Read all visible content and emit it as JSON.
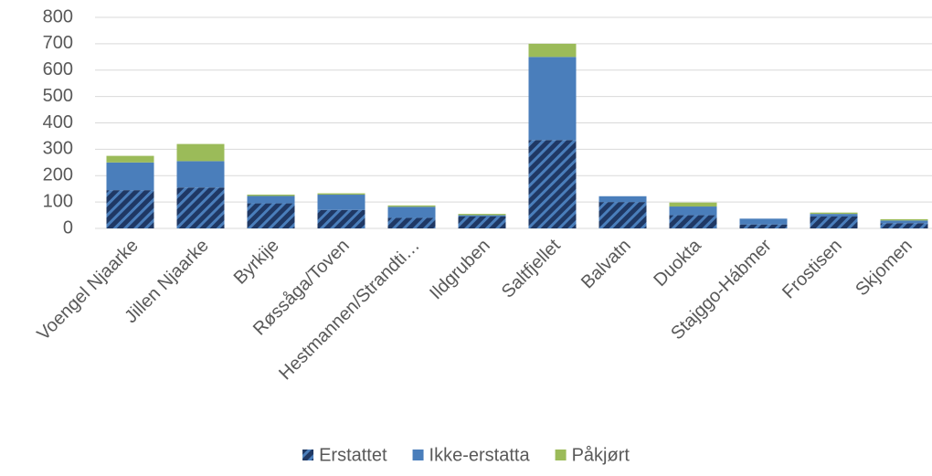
{
  "chart_data": {
    "type": "stacked_bar",
    "categories": [
      "Voengel Njaarke",
      "Jillen Njaarke",
      "Byrkije",
      "Røssåga/Toven",
      "Hestmannen/Strandti…",
      "Ildgruben",
      "Saltfjellet",
      "Balvatn",
      "Duokta",
      "Stajggo-Hábmer",
      "Frostisen",
      "Skjomen"
    ],
    "series": [
      {
        "name": "Erstattet",
        "color": "#1f3864",
        "pattern": "hatch",
        "values": [
          145,
          155,
          95,
          70,
          40,
          45,
          335,
          100,
          50,
          15,
          45,
          20
        ]
      },
      {
        "name": "Ikke-erstatta",
        "color": "#4a7ebb",
        "values": [
          105,
          100,
          28,
          58,
          42,
          5,
          315,
          22,
          33,
          22,
          10,
          10
        ]
      },
      {
        "name": "Påkjørt",
        "color": "#9bbb59",
        "values": [
          25,
          65,
          5,
          5,
          5,
          5,
          50,
          0,
          15,
          0,
          5,
          5
        ]
      }
    ],
    "ylim": [
      0,
      800
    ],
    "yticks": [
      0,
      100,
      200,
      300,
      400,
      500,
      600,
      700,
      800
    ],
    "grid": true,
    "legend": "bottom"
  }
}
